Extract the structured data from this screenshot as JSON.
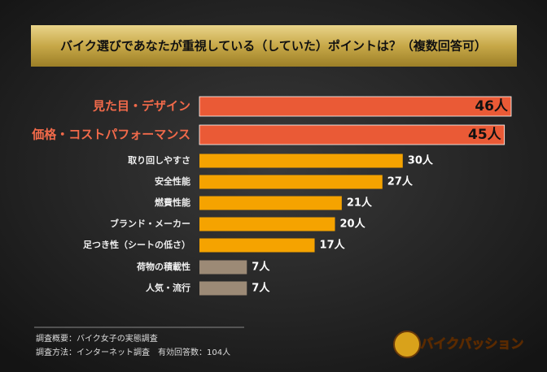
{
  "chart_data": {
    "type": "hbar",
    "title": "バイク選びであなたが重視している（していた）ポイントは？（複数回答可）",
    "categories": [
      "見た目・デザイン",
      "価格・コストパフォーマンス",
      "取り回しやすさ",
      "安全性能",
      "燃費性能",
      "ブランド・メーカー",
      "足つき性（シートの低さ）",
      "荷物の積載性",
      "人気・流行"
    ],
    "values": [
      46,
      45,
      30,
      27,
      21,
      20,
      17,
      7,
      7
    ],
    "value_labels": [
      "46人",
      "45人",
      "30人",
      "27人",
      "21人",
      "20人",
      "17人",
      "7人",
      "7人"
    ],
    "colors": [
      "#ea5a36",
      "#ea5a36",
      "#f5a300",
      "#f5a300",
      "#f5a300",
      "#f5a300",
      "#f5a300",
      "#9c8a76",
      "#9c8a76"
    ],
    "notes": [
      "調査概要：バイク女子の実態調査",
      "調査方法：インターネット調査　有効回答数：104人"
    ],
    "logo": "バイクパッション"
  }
}
